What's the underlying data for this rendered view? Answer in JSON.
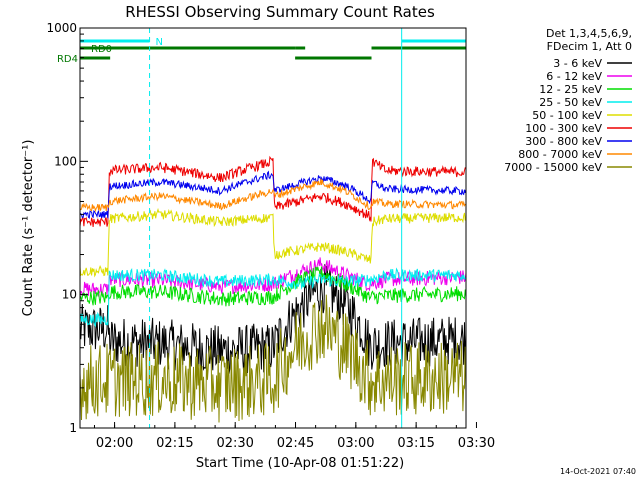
{
  "chart_data": {
    "type": "line",
    "title": "RHESSI Observing Summary Count Rates",
    "xlabel": "Start Time (10-Apr-08 01:51:22)",
    "ylabel": "Count Rate (s⁻¹ detector⁻¹)",
    "y_scale": "log",
    "ylim": [
      1,
      1000
    ],
    "xlim": [
      0,
      96
    ],
    "x_unit": "minutes from 01:51:22",
    "y_ticks": [
      {
        "value": 1,
        "label": "1"
      },
      {
        "value": 10,
        "label": "10"
      },
      {
        "value": 100,
        "label": "100"
      },
      {
        "value": 1000,
        "label": "1000"
      }
    ],
    "x_ticks": [
      {
        "value": 8.6,
        "label": "02:00"
      },
      {
        "value": 23.6,
        "label": "02:15"
      },
      {
        "value": 38.6,
        "label": "02:30"
      },
      {
        "value": 53.6,
        "label": "02:45"
      },
      {
        "value": 68.6,
        "label": "03:00"
      },
      {
        "value": 83.6,
        "label": "03:15"
      },
      {
        "value": 98.6,
        "label": "03:30"
      }
    ],
    "legend_header": [
      "Det 1,3,4,5,6,9,",
      "FDecim 1, Att 0"
    ],
    "legend_position": "right",
    "series": [
      {
        "name": "3 - 6 keV",
        "color": "#000000",
        "noise": 0.2,
        "x": [
          0,
          7,
          7.3,
          20,
          35,
          48,
          55,
          60,
          66,
          72,
          76,
          95
        ],
        "y": [
          5.5,
          5.5,
          4.5,
          4.3,
          3.8,
          4.0,
          8.0,
          11.5,
          8.5,
          4.2,
          4.3,
          4.6
        ]
      },
      {
        "name": "6 - 12 keV",
        "color": "#ee00ee",
        "noise": 0.06,
        "x": [
          0,
          7,
          7.3,
          20,
          35,
          48,
          55,
          60,
          66,
          72,
          76,
          95
        ],
        "y": [
          11,
          11,
          13,
          12.8,
          11.5,
          12,
          15,
          17,
          14,
          12,
          13,
          13.5
        ]
      },
      {
        "name": "12 - 25 keV",
        "color": "#00dd00",
        "noise": 0.06,
        "x": [
          0,
          7,
          7.3,
          20,
          35,
          48,
          55,
          60,
          66,
          72,
          76,
          95
        ],
        "y": [
          9.5,
          9.5,
          10.5,
          10.5,
          9.3,
          9.6,
          13,
          14.5,
          12,
          9.5,
          9.8,
          10.2
        ]
      },
      {
        "name": "25 - 50 keV",
        "color": "#00eeee",
        "noise": 0.05,
        "x": [
          0,
          7,
          7.3,
          20,
          35,
          48,
          55,
          60,
          66,
          72,
          76,
          95
        ],
        "y": [
          6.5,
          6.5,
          14,
          14,
          12.5,
          13,
          12,
          13,
          12.5,
          13,
          14,
          14
        ]
      },
      {
        "name": "50 - 100 keV",
        "color": "#dddd00",
        "noise": 0.04,
        "x": [
          0,
          7,
          7.3,
          20,
          35,
          48,
          48.3,
          60,
          66,
          72.4,
          72.7,
          76,
          95
        ],
        "y": [
          15,
          15,
          37,
          40,
          35,
          38,
          20,
          23,
          21,
          18,
          35,
          37,
          38
        ]
      },
      {
        "name": "100 - 300 keV",
        "color": "#ee0000",
        "noise": 0.04,
        "x": [
          0,
          7,
          7.3,
          20,
          35,
          48,
          48.3,
          60,
          66,
          72.4,
          72.7,
          76,
          95
        ],
        "y": [
          35,
          35,
          85,
          90,
          75,
          100,
          45,
          55,
          48,
          38,
          100,
          85,
          83
        ]
      },
      {
        "name": "300 - 800 keV",
        "color": "#0000ee",
        "noise": 0.03,
        "x": [
          0,
          7,
          7.3,
          20,
          35,
          48,
          48.3,
          60,
          66,
          72.4,
          72.7,
          76,
          95
        ],
        "y": [
          40,
          40,
          65,
          70,
          60,
          80,
          60,
          75,
          66,
          50,
          70,
          62,
          60
        ]
      },
      {
        "name": "800 - 7000 keV",
        "color": "#ff8800",
        "noise": 0.03,
        "x": [
          0,
          7,
          7.3,
          20,
          35,
          48,
          48.3,
          60,
          66,
          72.4,
          72.7,
          76,
          95
        ],
        "y": [
          45,
          45,
          50,
          55,
          46,
          60,
          55,
          70,
          60,
          45,
          50,
          48,
          47
        ]
      },
      {
        "name": "7000 - 15000 keV",
        "color": "#888800",
        "noise": 0.3,
        "x": [
          0,
          7,
          20,
          35,
          48,
          55,
          60,
          66,
          72,
          76,
          95
        ],
        "y": [
          2.2,
          2.3,
          2.3,
          2.1,
          2.3,
          4.5,
          6.0,
          4.0,
          2.3,
          2.3,
          2.4
        ]
      }
    ],
    "flag_bars": [
      {
        "label": "N",
        "color": "#00eeee",
        "segments": [
          [
            0,
            17.3
          ],
          [
            80,
            96
          ]
        ]
      },
      {
        "label": "RD0",
        "color": "#007700",
        "segments": [
          [
            0,
            53.5
          ],
          [
            53.5,
            56
          ],
          [
            72.5,
            96
          ]
        ]
      },
      {
        "label": "RD4",
        "color": "#007700",
        "segments": [
          [
            0,
            7.5
          ],
          [
            53.5,
            72.5
          ]
        ]
      }
    ],
    "vertical_lines": [
      {
        "value": 0,
        "color": "#00eeee",
        "style": "solid"
      },
      {
        "value": 17.3,
        "color": "#00eeee",
        "style": "dashed"
      },
      {
        "value": 80,
        "color": "#00eeee",
        "style": "solid"
      },
      {
        "value": 96,
        "color": "#00eeee",
        "style": "dashed"
      }
    ]
  },
  "footer": {
    "timestamp": "14-Oct-2021 07:40"
  }
}
